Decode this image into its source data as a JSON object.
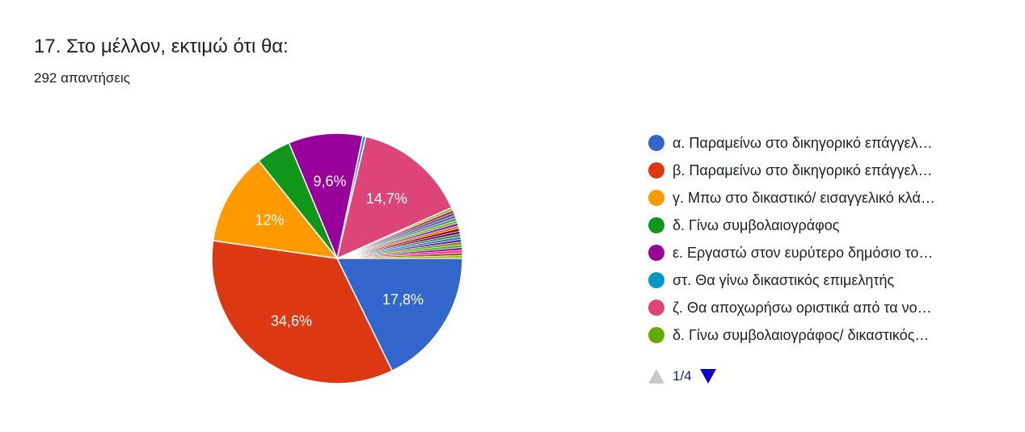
{
  "question": {
    "title": "17. Στο μέλλον, εκτιμώ ότι θα:",
    "responses": "292 απαντήσεις"
  },
  "chart_data": {
    "type": "pie",
    "slices": [
      {
        "legend": "α. Παραμείνω στο δικηγορικό επάγγελ…",
        "value": 17.8,
        "label": "17,8%",
        "color": "#3366cc"
      },
      {
        "legend": "β. Παραμείνω στο δικηγορικό επάγγελ…",
        "value": 34.6,
        "label": "34,6%",
        "color": "#dc3912"
      },
      {
        "legend": "γ. Μπω στο δικαστικό/ εισαγγελικό κλά…",
        "value": 12.0,
        "label": "12%",
        "color": "#ff9900"
      },
      {
        "legend": "δ. Γίνω συμβολαιογράφος",
        "value": 4.5,
        "label": "",
        "color": "#109618"
      },
      {
        "legend": "ε. Εργαστώ στον ευρύτερο δημόσιο το…",
        "value": 9.6,
        "label": "9,6%",
        "color": "#990099"
      },
      {
        "legend": "στ. Θα γίνω δικαστικός επιμελητής",
        "value": 0.4,
        "label": "",
        "color": "#0099c6"
      },
      {
        "legend": "ζ. Θα αποχωρήσω οριστικά από τα νο…",
        "value": 14.7,
        "label": "14,7%",
        "color": "#dd4477"
      },
      {
        "legend": "δ. Γίνω συμβολαιογράφος/ δικαστικός…",
        "value": 0.35,
        "label": "",
        "color": "#66aa00"
      }
    ],
    "other_small_slices": {
      "count": 18,
      "each_value": 0.35,
      "colors": [
        "#b82e2e",
        "#316395",
        "#994499",
        "#22aa99",
        "#aaaa11",
        "#6633cc",
        "#e67300",
        "#8b0707",
        "#651067",
        "#329262",
        "#5574a6",
        "#3b3eac",
        "#b77322",
        "#16d620",
        "#b91383",
        "#f4359e",
        "#9c5935",
        "#a9c413"
      ]
    },
    "legend_position": "right"
  },
  "pager": {
    "text": "1/4",
    "prev_icon": "triangle-up-icon",
    "next_icon": "triangle-down-icon"
  }
}
